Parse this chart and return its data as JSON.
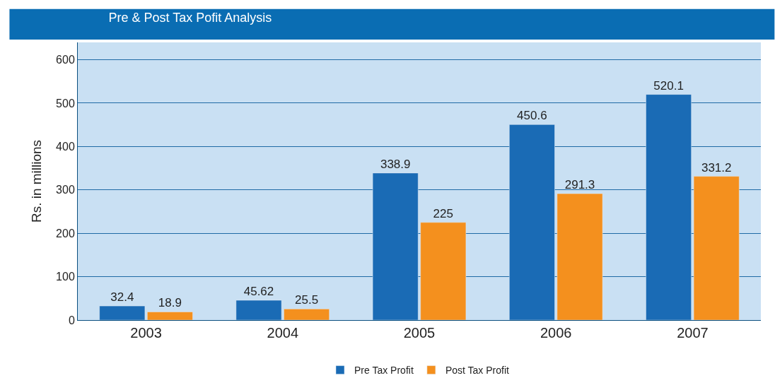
{
  "chart_data": {
    "type": "bar",
    "title": "Pre & Post Tax Pofit Analysis",
    "ylabel": "Rs. in millions",
    "categories": [
      "2003",
      "2004",
      "2005",
      "2006",
      "2007"
    ],
    "series": [
      {
        "name": "Pre Tax Profit",
        "color": "#1a6bb5",
        "values": [
          32.4,
          45.62,
          338.9,
          450.6,
          520.1
        ]
      },
      {
        "name": "Post Tax Profit",
        "color": "#f4901e",
        "values": [
          18.9,
          25.5,
          225,
          291.3,
          331.2
        ]
      }
    ],
    "ylim": [
      0,
      640
    ],
    "yticks": [
      0,
      100,
      200,
      300,
      400,
      500,
      600
    ],
    "grid": "y",
    "legend": "bottom",
    "data_labels": true
  }
}
